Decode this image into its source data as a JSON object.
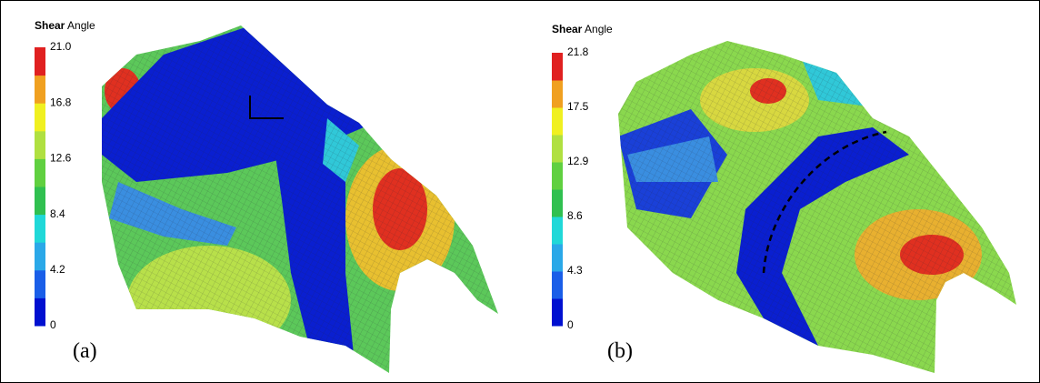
{
  "panels": [
    {
      "legend": {
        "title_bold": "Shear",
        "title_rest": "Angle",
        "ticks": [
          "0",
          "4.2",
          "8.4",
          "12.6",
          "16.8",
          "21.0"
        ]
      },
      "label": "(a)"
    },
    {
      "legend": {
        "title_bold": "Shear",
        "title_rest": "Angle",
        "ticks": [
          "0",
          "4.3",
          "8.6",
          "12.9",
          "17.5",
          "21.8"
        ]
      },
      "label": "(b)"
    }
  ]
}
